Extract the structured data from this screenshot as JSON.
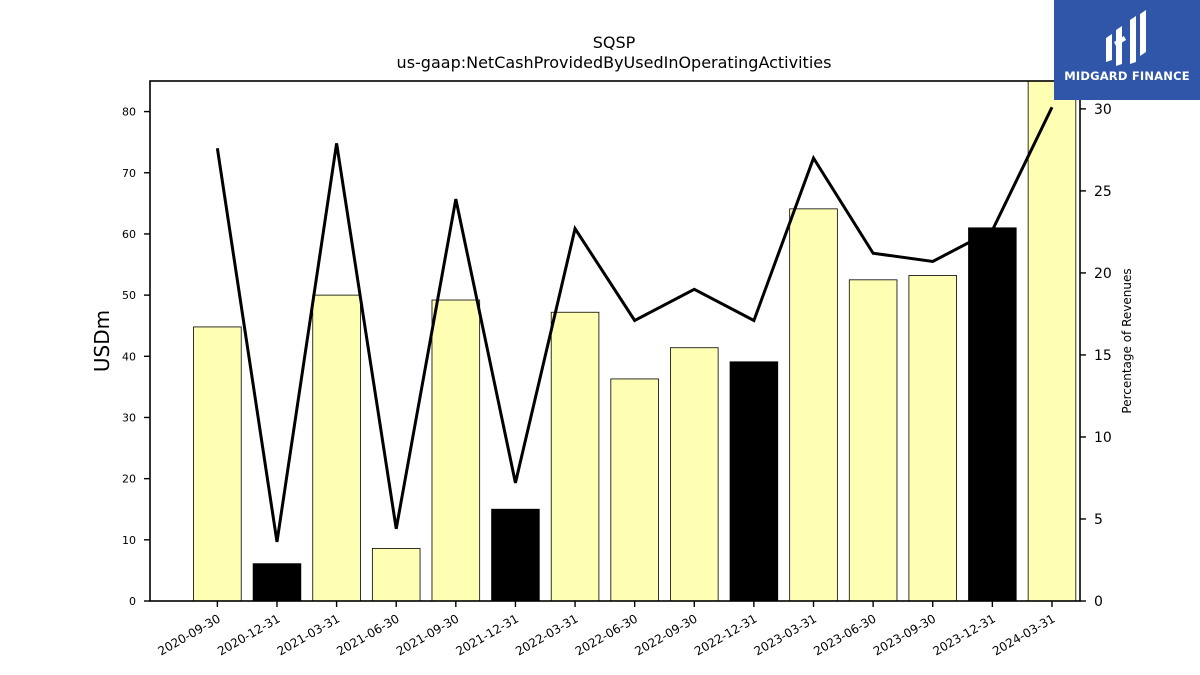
{
  "chart_data": {
    "type": "bar",
    "title": "SQSP",
    "subtitle": "us-gaap:NetCashProvidedByUsedInOperatingActivities",
    "ylabel": "USDm",
    "y2label": "Percentage of Revenues",
    "categories": [
      "2020-09-30",
      "2020-12-31",
      "2021-03-31",
      "2021-06-30",
      "2021-09-30",
      "2021-12-31",
      "2022-03-31",
      "2022-06-30",
      "2022-09-30",
      "2022-12-31",
      "2023-03-31",
      "2023-06-30",
      "2023-09-30",
      "2023-12-31",
      "2024-03-31"
    ],
    "series": [
      {
        "values": [
          44.8,
          6.1,
          50.0,
          8.6,
          49.2,
          15.0,
          47.2,
          36.3,
          41.4,
          39.1,
          64.1,
          52.5,
          53.2,
          61.0,
          85.5
        ],
        "colors": [
          "#ffffb3",
          "#000000",
          "#ffffb3",
          "#ffffb3",
          "#ffffb3",
          "#000000",
          "#ffffb3",
          "#ffffb3",
          "#ffffb3",
          "#000000",
          "#ffffb3",
          "#ffffb3",
          "#ffffb3",
          "#000000",
          "#ffffb3"
        ]
      },
      {
        "axis": "right",
        "values": [
          27.6,
          3.6,
          27.9,
          4.4,
          24.5,
          7.2,
          22.7,
          17.1,
          19.0,
          17.1,
          27.0,
          21.2,
          20.7,
          22.6,
          30.1
        ]
      }
    ],
    "ylim": [
      0,
      85
    ],
    "y2lim": [
      0,
      31.7
    ],
    "yticks": [
      0,
      10,
      20,
      30,
      40,
      50,
      60,
      70,
      80
    ],
    "y2ticks": [
      0,
      5,
      10,
      15,
      20,
      25,
      30
    ],
    "grid": false
  },
  "logo": {
    "text": "MIDGARD FINANCE",
    "bg": "#2f56a8"
  }
}
